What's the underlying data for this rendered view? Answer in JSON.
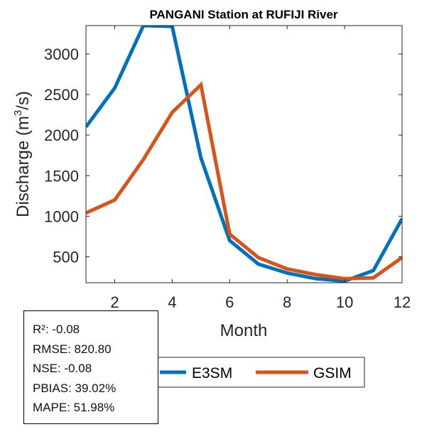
{
  "chart_data": {
    "type": "line",
    "title": "PANGANI  Station at  RUFIJI  River",
    "xlabel": "Month",
    "ylabel": "Discharge (m",
    "ylabel_sup": "3",
    "ylabel_suffix": "/s)",
    "xlim": [
      1,
      12
    ],
    "ylim": [
      180,
      3350
    ],
    "x_ticks": [
      2,
      4,
      6,
      8,
      10,
      12
    ],
    "y_ticks": [
      500,
      1000,
      1500,
      2000,
      2500,
      3000
    ],
    "x": [
      1,
      2,
      3,
      4,
      5,
      6,
      7,
      8,
      9,
      10,
      11,
      12
    ],
    "series": [
      {
        "name": "E3SM",
        "color": "#0072BD",
        "values": [
          2100,
          2580,
          3350,
          3340,
          1720,
          700,
          410,
          300,
          230,
          200,
          330,
          970
        ]
      },
      {
        "name": "GSIM",
        "color": "#D95319",
        "values": [
          1040,
          1200,
          1700,
          2280,
          2620,
          780,
          490,
          350,
          280,
          230,
          240,
          490
        ]
      }
    ]
  },
  "stats": {
    "r2": "R²: -0.08",
    "rmse": "RMSE: 820.80",
    "nse": "NSE: -0.08",
    "pbias": "PBIAS: 39.02%",
    "mape": "MAPE: 51.98%"
  }
}
